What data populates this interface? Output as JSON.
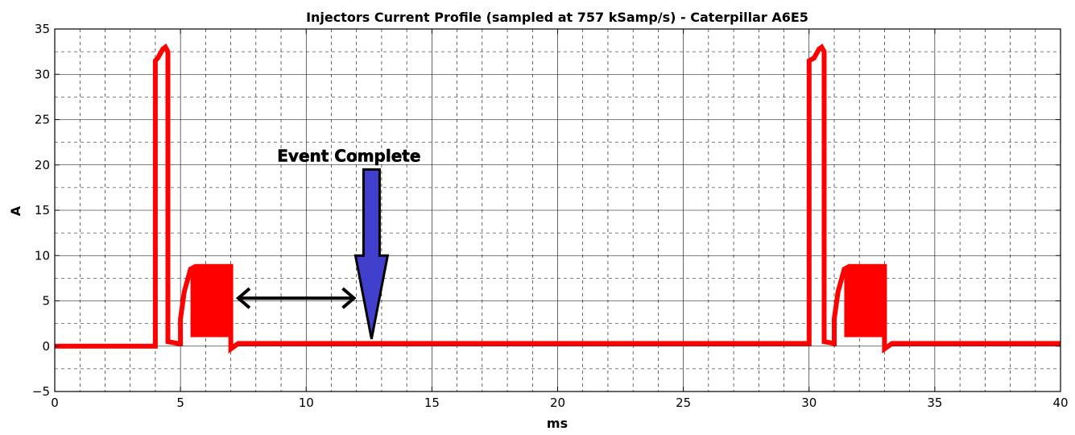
{
  "chart_data": {
    "type": "line",
    "title": "Injectors Current Profile (sampled at 757 kSamp/s) - Caterpillar A6E5",
    "xlabel": "ms",
    "ylabel": "A",
    "xlim": [
      0,
      40
    ],
    "ylim": [
      -5,
      35
    ],
    "x_ticks": [
      0,
      5,
      10,
      15,
      20,
      25,
      30,
      35,
      40
    ],
    "x_tick_labels": [
      "0",
      "5",
      "10",
      "15",
      "20",
      "25",
      "30",
      "35",
      "40"
    ],
    "y_ticks": [
      -5,
      0,
      5,
      10,
      15,
      20,
      25,
      30,
      35
    ],
    "y_tick_labels": [
      "−5",
      "0",
      "5",
      "10",
      "15",
      "20",
      "25",
      "30",
      "35"
    ],
    "grid": true,
    "series": [
      {
        "color": "#ff0000",
        "x": [
          0,
          4.0,
          4.0,
          4.1,
          4.3,
          4.4,
          4.5,
          4.5,
          4.9,
          5.0,
          5.0,
          5.15,
          5.4,
          5.6,
          7.0,
          7.0,
          7.3,
          30.0,
          30.0,
          30.2,
          30.4,
          30.5,
          30.6,
          30.6,
          31.0,
          31.0,
          31.15,
          31.4,
          31.6,
          33.0,
          33.0,
          33.3,
          40
        ],
        "y": [
          0,
          0,
          31.5,
          31.8,
          32.8,
          33.0,
          32.5,
          0.5,
          0.3,
          0.3,
          3.0,
          6.0,
          8.5,
          8.8,
          8.8,
          -0.3,
          0.3,
          0.3,
          31.5,
          31.8,
          32.8,
          33.0,
          32.5,
          0.5,
          0.3,
          3.0,
          6.0,
          8.5,
          8.8,
          8.8,
          -0.3,
          0.3,
          0.3
        ]
      }
    ],
    "hold_phases": [
      {
        "x_start": 5.4,
        "x_end": 7.0,
        "y_low": 1.0,
        "y_high": 8.8
      },
      {
        "x_start": 31.4,
        "x_end": 33.0,
        "y_low": 1.0,
        "y_high": 8.8
      }
    ],
    "annotations": [
      {
        "text": "Event Complete",
        "x": 11.7,
        "y": 20.4
      },
      {
        "kind": "double-arrow",
        "color": "#000000",
        "x_start": 7.3,
        "x_end": 11.9,
        "y": 5.3
      },
      {
        "kind": "down-arrow",
        "color": "#4040cc",
        "x": 12.6,
        "y_top": 19.5,
        "y_tip": 0.8
      }
    ]
  }
}
